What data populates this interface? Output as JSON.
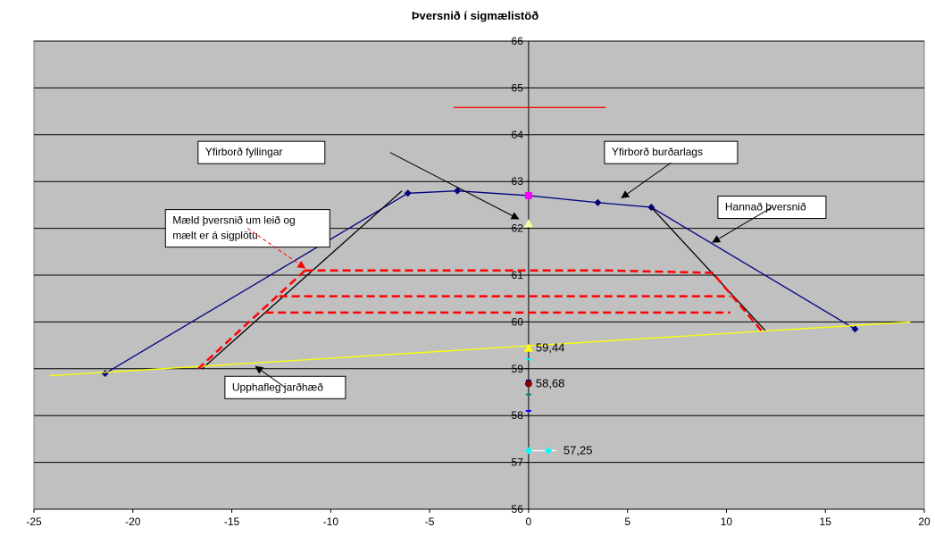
{
  "chart_data": {
    "type": "line",
    "title": "Þversnið í sigmælistöð",
    "xlim": [
      -25,
      20
    ],
    "ylim": [
      56,
      66
    ],
    "x_ticks": [
      -25,
      -20,
      -15,
      -10,
      -5,
      0,
      5,
      10,
      15,
      20
    ],
    "y_ticks": [
      56,
      57,
      58,
      59,
      60,
      61,
      62,
      63,
      64,
      65,
      66
    ],
    "grid": true,
    "colors": {
      "plot_background": "#c0c0c0",
      "design": "#000080",
      "fill_surface": "#000000",
      "ground": "#ffff00",
      "measured": "#ff0000",
      "red_line": "#ff0000",
      "magenta": "#ff00ff",
      "maroon": "#800000",
      "cyan": "#00ffff",
      "teal": "#008080",
      "blue": "#0000ff"
    },
    "series": [
      {
        "key": "design",
        "points": [
          [
            -21.4,
            58.9
          ],
          [
            -6.1,
            62.75
          ],
          [
            -3.6,
            62.8
          ],
          [
            0,
            62.7
          ],
          [
            3.5,
            62.55
          ],
          [
            6.2,
            62.45
          ],
          [
            16.5,
            59.85
          ]
        ],
        "markers": true
      },
      {
        "key": "fill_left",
        "points": [
          [
            -16.5,
            59.0
          ],
          [
            -6.4,
            62.8
          ]
        ]
      },
      {
        "key": "fill_right",
        "points": [
          [
            6.2,
            62.45
          ],
          [
            12.0,
            59.8
          ]
        ]
      },
      {
        "key": "ground",
        "points": [
          [
            -24.2,
            58.85
          ],
          [
            19.3,
            60.0
          ]
        ]
      },
      {
        "key": "red_line",
        "points": [
          [
            -3.8,
            64.58
          ],
          [
            3.9,
            64.58
          ]
        ]
      },
      {
        "key": "measured_top",
        "points": [
          [
            -11.3,
            61.1
          ],
          [
            4,
            61.1
          ],
          [
            9.3,
            61.05
          ],
          [
            11.8,
            59.8
          ]
        ],
        "dashed": true
      },
      {
        "key": "measured_mid",
        "points": [
          [
            -12.6,
            60.55
          ],
          [
            10.2,
            60.55
          ]
        ],
        "dashed": true
      },
      {
        "key": "measured_bottom",
        "points": [
          [
            -13.3,
            60.2
          ],
          [
            10.2,
            60.2
          ]
        ],
        "dashed": true
      },
      {
        "key": "measured_slope",
        "points": [
          [
            -11.3,
            61.1
          ],
          [
            -16.7,
            59.0
          ]
        ],
        "dashed": true
      }
    ],
    "point_markers": [
      {
        "x": 0,
        "y": 62.7,
        "shape": "square",
        "color": "#ff00ff"
      },
      {
        "x": 0,
        "y": 62.1,
        "shape": "triangle",
        "color": "#ffff99"
      },
      {
        "x": 0,
        "y": 59.44,
        "shape": "triangle",
        "color": "#ffff00"
      },
      {
        "x": 0,
        "y": 59.2,
        "shape": "dash",
        "color": "#00ffff"
      },
      {
        "x": 0,
        "y": 58.75,
        "shape": "dash",
        "color": "#000080"
      },
      {
        "x": 0,
        "y": 58.68,
        "shape": "circle",
        "color": "#800000"
      },
      {
        "x": 0,
        "y": 58.45,
        "shape": "dash",
        "color": "#008080"
      },
      {
        "x": 0,
        "y": 58.1,
        "shape": "dash",
        "color": "#0000ff"
      },
      {
        "x": 0,
        "y": 57.25,
        "shape": "diamond",
        "color": "#00ffff"
      },
      {
        "x": 1,
        "y": 57.25,
        "shape": "diamond",
        "color": "#00ffff"
      }
    ],
    "white_line": [
      [
        0,
        57.25
      ],
      [
        1.4,
        57.25
      ]
    ],
    "value_labels": [
      {
        "text": "59,44",
        "x": 0,
        "y": 59.44
      },
      {
        "text": "58,68",
        "x": 0,
        "y": 58.68
      },
      {
        "text": "57,25",
        "x": 1.4,
        "y": 57.25
      }
    ],
    "annotations": [
      {
        "text": "Yfirborð fyllingar",
        "box_anchor": [
          -13.5,
          63.62
        ],
        "arrow_from": [
          -7,
          63.62
        ],
        "arrow_to": [
          -0.5,
          62.2
        ],
        "solid": true
      },
      {
        "text": "Yfirborð burðarlags",
        "box_anchor": [
          7.2,
          63.62
        ],
        "arrow_from": [
          7.2,
          63.4
        ],
        "arrow_to": [
          4.7,
          62.65
        ],
        "solid": true
      },
      {
        "text": "Hannað þversnið",
        "box_anchor": [
          12.3,
          62.45
        ],
        "arrow_from": [
          12.3,
          62.45
        ],
        "arrow_to": [
          9.3,
          61.7
        ],
        "solid": true
      },
      {
        "text": "Upphafleg jarðhæð",
        "box_anchor": [
          -12.3,
          58.6
        ],
        "arrow_from": [
          -12.3,
          58.6
        ],
        "arrow_to": [
          -13.8,
          59.05
        ],
        "solid": true
      },
      {
        "text_lines": [
          "Mæld þversnið um leið og",
          "mælt er á sigplötu"
        ],
        "box_anchor": [
          -14.2,
          62.0
        ],
        "arrow_from": [
          -14.2,
          62.0
        ],
        "arrow_to": [
          -11.3,
          61.15
        ],
        "solid": false
      }
    ]
  }
}
